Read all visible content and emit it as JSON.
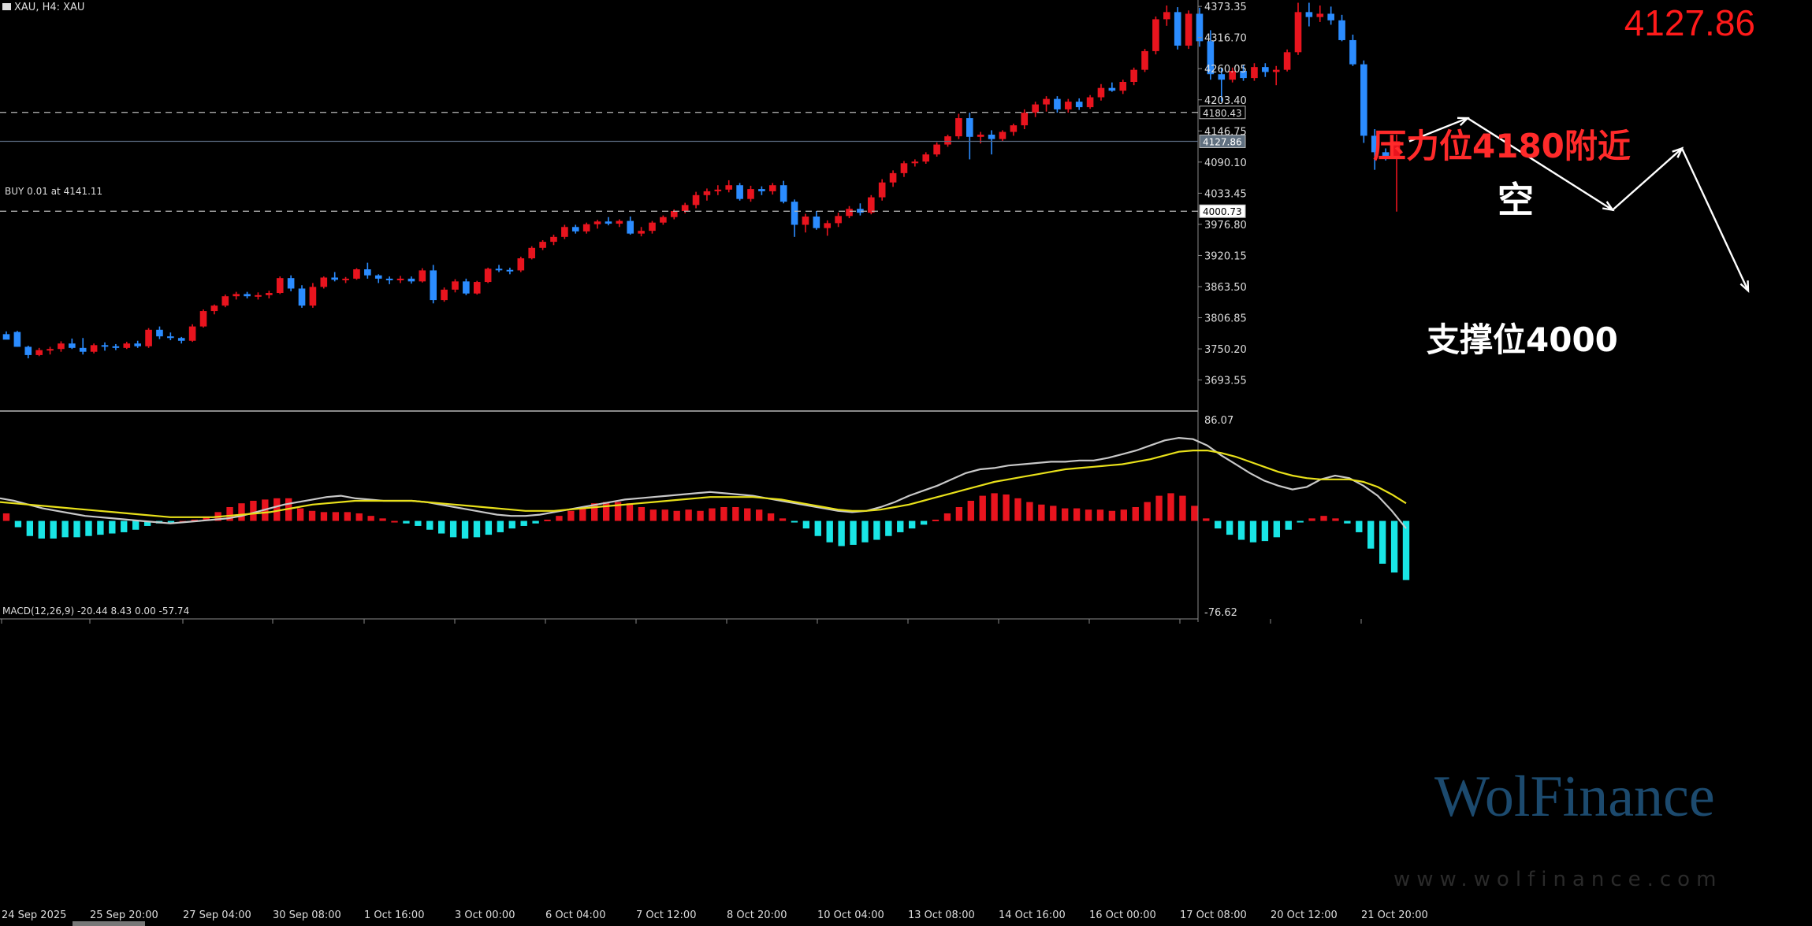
{
  "header": {
    "symbol": "XAU, H4:  XAU",
    "current_price": "4127.86",
    "order_line": "BUY 0.01 at 4141.11"
  },
  "annotations": {
    "resistance": "压力位4180附近",
    "support": "支撑位4000",
    "short": "空"
  },
  "watermark": {
    "brand": "WolFinance",
    "url": "www.wolfinance.com"
  },
  "price_axis": {
    "ticks": [
      "4373.35",
      "4316.70",
      "4260.05",
      "4203.40",
      "4146.75",
      "4090.10",
      "4033.45",
      "3976.80",
      "3920.15",
      "3863.50",
      "3806.85",
      "3750.20",
      "3693.55"
    ],
    "level_labels": [
      "4180.43",
      "4127.86",
      "4000.73"
    ]
  },
  "macd": {
    "label": "MACD(12,26,9) -20.44 8.43 0.00 -57.74",
    "axis_top": "86.07",
    "axis_bottom": "-76.62",
    "histogram": [
      6,
      -5,
      -12,
      -14,
      -14,
      -13,
      -13,
      -12,
      -11,
      -10,
      -9,
      -7,
      -4,
      -2,
      -1,
      0,
      1,
      3,
      7,
      11,
      14,
      16,
      17,
      18,
      18,
      10,
      8,
      7,
      7,
      7,
      6,
      4,
      2,
      0,
      -2,
      -4,
      -7,
      -10,
      -13,
      -14,
      -13,
      -11,
      -9,
      -6,
      -4,
      -2,
      1,
      4,
      8,
      11,
      14,
      15,
      15,
      14,
      11,
      9,
      9,
      8,
      9,
      8,
      10,
      11,
      11,
      10,
      9,
      6,
      2,
      -1,
      -6,
      -12,
      -17,
      -20,
      -19,
      -17,
      -15,
      -12,
      -9,
      -6,
      -3,
      1,
      6,
      11,
      16,
      20,
      22,
      21,
      18,
      15,
      13,
      12,
      10,
      10,
      9,
      9,
      8,
      9,
      11,
      15,
      20,
      22,
      20,
      12,
      2,
      -6,
      -11,
      -15,
      -17,
      -16,
      -13,
      -7,
      -1,
      2,
      4,
      2,
      -2,
      -9,
      -22,
      -34,
      -41,
      -47
    ],
    "macd_line": [
      18,
      16,
      13,
      10,
      8,
      6,
      4,
      3,
      2,
      1,
      0,
      -1,
      -2,
      -1,
      0,
      1,
      2,
      4,
      7,
      10,
      13,
      15,
      17,
      19,
      20,
      18,
      17,
      16,
      16,
      16,
      15,
      13,
      11,
      9,
      7,
      5,
      4,
      4,
      5,
      7,
      9,
      11,
      13,
      15,
      17,
      18,
      19,
      20,
      21,
      22,
      23,
      22,
      21,
      20,
      18,
      16,
      14,
      12,
      10,
      8,
      7,
      8,
      11,
      15,
      20,
      24,
      28,
      33,
      38,
      41,
      42,
      44,
      45,
      46,
      47,
      47,
      48,
      48,
      50,
      53,
      56,
      60,
      64,
      66,
      65,
      60,
      52,
      45,
      38,
      32,
      28,
      25,
      27,
      33,
      36,
      34,
      28,
      20,
      8,
      -6
    ],
    "signal_line": [
      15,
      14,
      13,
      12,
      11,
      10,
      9,
      8,
      7,
      6,
      5,
      4,
      3,
      3,
      3,
      3,
      4,
      5,
      6,
      7,
      9,
      11,
      13,
      14,
      15,
      16,
      16,
      16,
      16,
      16,
      15,
      14,
      13,
      12,
      11,
      10,
      9,
      8,
      8,
      8,
      9,
      10,
      11,
      12,
      13,
      14,
      15,
      16,
      17,
      18,
      19,
      19,
      19,
      19,
      18,
      17,
      15,
      13,
      11,
      9,
      8,
      8,
      9,
      11,
      13,
      16,
      19,
      22,
      25,
      28,
      31,
      33,
      35,
      37,
      39,
      41,
      42,
      43,
      44,
      45,
      47,
      49,
      52,
      55,
      56,
      56,
      54,
      51,
      47,
      43,
      39,
      36,
      34,
      33,
      33,
      33,
      31,
      27,
      21,
      14
    ]
  },
  "time_axis": [
    "24 Sep 2025",
    "25 Sep 20:00",
    "27 Sep 04:00",
    "30 Sep 08:00",
    "1 Oct 16:00",
    "3 Oct 00:00",
    "6 Oct 04:00",
    "7 Oct 12:00",
    "8 Oct 20:00",
    "10 Oct 04:00",
    "13 Oct 08:00",
    "14 Oct 16:00",
    "16 Oct 00:00",
    "17 Oct 08:00",
    "20 Oct 12:00",
    "21 Oct 20:00"
  ],
  "colors": {
    "bull": "#e8141e",
    "bear": "#2b8cff",
    "hist_pos": "#e8141e",
    "hist_neg": "#19e5e5",
    "macd": "#c8c8c8",
    "signal": "#e8e01a",
    "grid": "#8a8a8a"
  },
  "chart_data": {
    "type": "candlestick",
    "x_range": [
      "24 Sep 2025",
      "21 Oct 20:00"
    ],
    "ylim": [
      3640,
      4385
    ],
    "levels": [
      4180.43,
      4127.86,
      4000.73
    ],
    "projected_path": [
      4127.86,
      4170,
      4003,
      4115,
      3856
    ],
    "candles": [
      [
        3777,
        3782,
        3770,
        3767
      ],
      [
        3781,
        3783,
        3754,
        3754
      ],
      [
        3754,
        3756,
        3733,
        3739
      ],
      [
        3739,
        3752,
        3737,
        3748
      ],
      [
        3748,
        3754,
        3740,
        3750
      ],
      [
        3750,
        3764,
        3745,
        3760
      ],
      [
        3760,
        3769,
        3750,
        3752
      ],
      [
        3752,
        3770,
        3740,
        3745
      ],
      [
        3745,
        3760,
        3742,
        3757
      ],
      [
        3757,
        3762,
        3747,
        3755
      ],
      [
        3755,
        3759,
        3748,
        3752
      ],
      [
        3752,
        3763,
        3750,
        3760
      ],
      [
        3760,
        3765,
        3752,
        3755
      ],
      [
        3755,
        3788,
        3752,
        3785
      ],
      [
        3785,
        3791,
        3768,
        3773
      ],
      [
        3773,
        3780,
        3766,
        3770
      ],
      [
        3770,
        3772,
        3760,
        3765
      ],
      [
        3765,
        3795,
        3763,
        3791
      ],
      [
        3791,
        3822,
        3789,
        3819
      ],
      [
        3819,
        3831,
        3813,
        3829
      ],
      [
        3829,
        3849,
        3826,
        3846
      ],
      [
        3846,
        3854,
        3840,
        3850
      ],
      [
        3850,
        3854,
        3842,
        3846
      ],
      [
        3846,
        3853,
        3840,
        3848
      ],
      [
        3848,
        3856,
        3842,
        3852
      ],
      [
        3852,
        3882,
        3850,
        3879
      ],
      [
        3879,
        3884,
        3855,
        3860
      ],
      [
        3860,
        3866,
        3825,
        3829
      ],
      [
        3829,
        3870,
        3825,
        3863
      ],
      [
        3863,
        3882,
        3860,
        3880
      ],
      [
        3880,
        3890,
        3873,
        3876
      ],
      [
        3876,
        3881,
        3870,
        3878
      ],
      [
        3878,
        3897,
        3876,
        3895
      ],
      [
        3895,
        3907,
        3878,
        3884
      ],
      [
        3884,
        3886,
        3870,
        3878
      ],
      [
        3878,
        3882,
        3868,
        3875
      ],
      [
        3875,
        3883,
        3870,
        3878
      ],
      [
        3878,
        3882,
        3869,
        3873
      ],
      [
        3873,
        3897,
        3871,
        3893
      ],
      [
        3893,
        3903,
        3833,
        3839
      ],
      [
        3839,
        3862,
        3836,
        3858
      ],
      [
        3858,
        3877,
        3853,
        3873
      ],
      [
        3873,
        3878,
        3848,
        3851
      ],
      [
        3851,
        3874,
        3849,
        3872
      ],
      [
        3872,
        3898,
        3870,
        3896
      ],
      [
        3896,
        3903,
        3890,
        3894
      ],
      [
        3894,
        3898,
        3886,
        3893
      ],
      [
        3893,
        3918,
        3890,
        3915
      ],
      [
        3915,
        3937,
        3913,
        3934
      ],
      [
        3934,
        3948,
        3930,
        3945
      ],
      [
        3945,
        3958,
        3939,
        3954
      ],
      [
        3954,
        3976,
        3950,
        3972
      ],
      [
        3972,
        3976,
        3960,
        3964
      ],
      [
        3964,
        3980,
        3960,
        3977
      ],
      [
        3977,
        3985,
        3969,
        3982
      ],
      [
        3982,
        3990,
        3975,
        3978
      ],
      [
        3978,
        3986,
        3972,
        3983
      ],
      [
        3983,
        3991,
        3958,
        3960
      ],
      [
        3960,
        3972,
        3955,
        3965
      ],
      [
        3965,
        3983,
        3960,
        3980
      ],
      [
        3980,
        3993,
        3976,
        3990
      ],
      [
        3990,
        4004,
        3986,
        4001
      ],
      [
        4001,
        4016,
        3997,
        4012
      ],
      [
        4012,
        4036,
        4006,
        4030
      ],
      [
        4030,
        4042,
        4020,
        4037
      ],
      [
        4037,
        4048,
        4030,
        4040
      ],
      [
        4040,
        4057,
        4035,
        4048
      ],
      [
        4048,
        4052,
        4020,
        4023
      ],
      [
        4023,
        4047,
        4018,
        4041
      ],
      [
        4041,
        4046,
        4030,
        4037
      ],
      [
        4037,
        4052,
        4031,
        4048
      ],
      [
        4048,
        4056,
        4015,
        4018
      ],
      [
        4018,
        4022,
        3954,
        3976
      ],
      [
        3976,
        3996,
        3962,
        3991
      ],
      [
        3991,
        4001,
        3967,
        3970
      ],
      [
        3970,
        3984,
        3956,
        3979
      ],
      [
        3979,
        3998,
        3972,
        3992
      ],
      [
        3992,
        4010,
        3988,
        4005
      ],
      [
        4005,
        4015,
        3993,
        3998
      ],
      [
        3998,
        4030,
        3995,
        4026
      ],
      [
        4026,
        4059,
        4020,
        4053
      ],
      [
        4053,
        4075,
        4045,
        4070
      ],
      [
        4070,
        4092,
        4063,
        4088
      ],
      [
        4088,
        4095,
        4082,
        4091
      ],
      [
        4091,
        4108,
        4087,
        4104
      ],
      [
        4104,
        4126,
        4100,
        4122
      ],
      [
        4122,
        4140,
        4118,
        4137
      ],
      [
        4137,
        4178,
        4132,
        4170
      ],
      [
        4170,
        4180,
        4095,
        4136
      ],
      [
        4136,
        4145,
        4124,
        4140
      ],
      [
        4140,
        4148,
        4104,
        4132
      ],
      [
        4132,
        4148,
        4128,
        4145
      ],
      [
        4145,
        4160,
        4138,
        4157
      ],
      [
        4157,
        4186,
        4150,
        4180
      ],
      [
        4180,
        4200,
        4172,
        4195
      ],
      [
        4195,
        4210,
        4182,
        4205
      ],
      [
        4205,
        4210,
        4180,
        4186
      ],
      [
        4186,
        4205,
        4180,
        4200
      ],
      [
        4200,
        4206,
        4185,
        4190
      ],
      [
        4190,
        4212,
        4187,
        4208
      ],
      [
        4208,
        4232,
        4202,
        4225
      ],
      [
        4225,
        4235,
        4218,
        4220
      ],
      [
        4220,
        4240,
        4214,
        4236
      ],
      [
        4236,
        4262,
        4230,
        4258
      ],
      [
        4258,
        4296,
        4254,
        4292
      ],
      [
        4292,
        4355,
        4286,
        4350
      ],
      [
        4350,
        4375,
        4338,
        4363
      ],
      [
        4363,
        4372,
        4295,
        4302
      ],
      [
        4302,
        4366,
        4296,
        4360
      ],
      [
        4360,
        4371,
        4300,
        4310
      ],
      [
        4310,
        4330,
        4240,
        4250
      ],
      [
        4250,
        4262,
        4200,
        4240
      ],
      [
        4240,
        4262,
        4235,
        4256
      ],
      [
        4256,
        4267,
        4238,
        4243
      ],
      [
        4243,
        4270,
        4238,
        4263
      ],
      [
        4263,
        4270,
        4245,
        4254
      ],
      [
        4254,
        4265,
        4230,
        4258
      ],
      [
        4258,
        4295,
        4255,
        4290
      ],
      [
        4290,
        4380,
        4285,
        4363
      ],
      [
        4363,
        4380,
        4337,
        4354
      ],
      [
        4354,
        4375,
        4345,
        4360
      ],
      [
        4360,
        4373,
        4340,
        4348
      ],
      [
        4348,
        4358,
        4310,
        4312
      ],
      [
        4312,
        4322,
        4265,
        4268
      ],
      [
        4268,
        4275,
        4125,
        4138
      ],
      [
        4138,
        4150,
        4076,
        4108
      ],
      [
        4108,
        4115,
        4093,
        4097
      ],
      [
        4097,
        4140,
        4000,
        4128
      ]
    ]
  }
}
